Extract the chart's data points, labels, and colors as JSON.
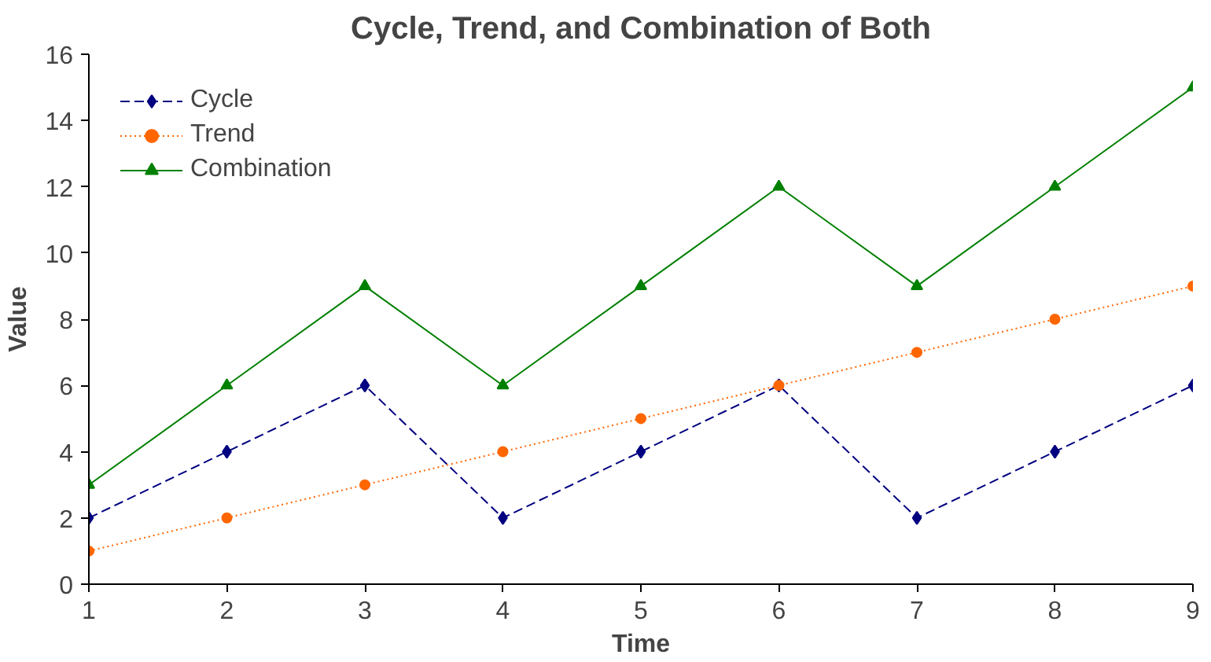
{
  "chart_data": {
    "type": "line",
    "title": "Cycle, Trend, and Combination of Both",
    "xlabel": "Time",
    "ylabel": "Value",
    "x": [
      1,
      2,
      3,
      4,
      5,
      6,
      7,
      8,
      9
    ],
    "series": [
      {
        "name": "Cycle",
        "color": "#000080",
        "marker": "diamond",
        "line_style": "dashed",
        "values": [
          2,
          4,
          6,
          2,
          4,
          6,
          2,
          4,
          6
        ]
      },
      {
        "name": "Trend",
        "color": "#ff6600",
        "marker": "circle",
        "line_style": "dotted",
        "values": [
          1,
          2,
          3,
          4,
          5,
          6,
          7,
          8,
          9
        ]
      },
      {
        "name": "Combination",
        "color": "#008000",
        "marker": "triangle",
        "line_style": "solid",
        "values": [
          3,
          6,
          9,
          6,
          9,
          12,
          9,
          12,
          15
        ]
      }
    ],
    "xlim": [
      1,
      9
    ],
    "xticks": [
      1,
      2,
      3,
      4,
      5,
      6,
      7,
      8,
      9
    ],
    "ylim": [
      0,
      16
    ],
    "yticks": [
      0,
      2,
      4,
      6,
      8,
      10,
      12,
      14,
      16
    ],
    "grid": false,
    "legend": "top left"
  }
}
